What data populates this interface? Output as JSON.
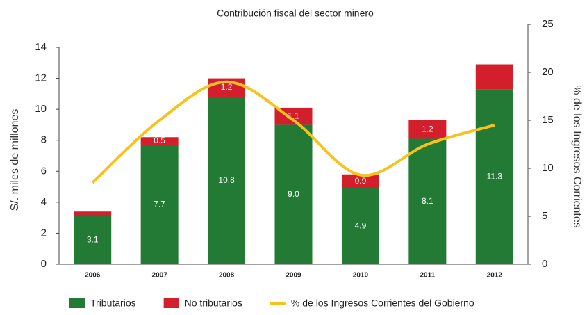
{
  "chart_data": {
    "type": "bar-line",
    "title": "Contribución fiscal del sector minero",
    "y_label": "S/. miles de millones",
    "y2_label": "% de los Ingresos Corrientes",
    "categories": [
      "2006",
      "2007",
      "2008",
      "2009",
      "2010",
      "2011",
      "2012"
    ],
    "series": [
      {
        "name": "Tributarios",
        "color": "#237a35",
        "values": [
          3.1,
          7.7,
          10.8,
          9.0,
          4.9,
          8.1,
          11.3
        ],
        "value_labels": [
          "3.1",
          "7.7",
          "10.8",
          "9.0",
          "4.9",
          "8.1",
          "11.3"
        ]
      },
      {
        "name": "No tributarios",
        "color": "#d21f2b",
        "values": [
          0.3,
          0.5,
          1.2,
          1.1,
          0.9,
          1.2,
          1.6
        ],
        "value_labels": [
          null,
          "0.5",
          "1.2",
          "1.1",
          "0.9",
          "1.2",
          null
        ]
      },
      {
        "name": "% de los Ingresos Corrientes del Gobierno",
        "color": "#f6c21c",
        "axis": "y2",
        "values": [
          8.5,
          15,
          19,
          15,
          9.3,
          12.5,
          14.5
        ]
      }
    ],
    "ylim": [
      0,
      14
    ],
    "yticks": [
      0,
      2,
      4,
      6,
      8,
      10,
      12,
      14
    ],
    "y2lim": [
      0,
      25
    ],
    "y2ticks": [
      0,
      5,
      10,
      15,
      20,
      25
    ]
  }
}
